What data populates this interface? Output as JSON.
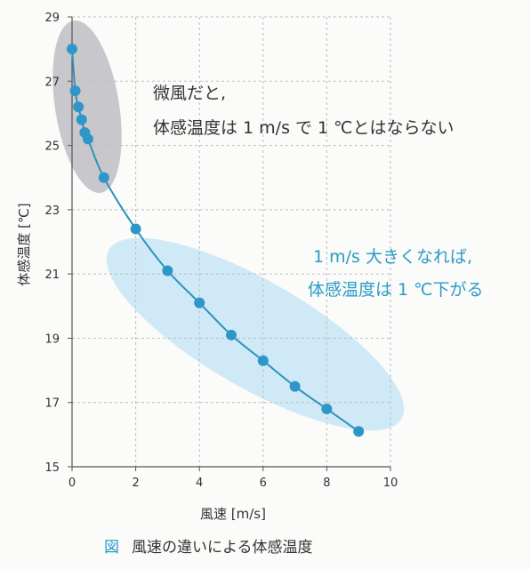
{
  "chart_data": {
    "type": "line",
    "title": "",
    "xlabel": "風速 [m/s]",
    "ylabel": "体感温度 [℃]",
    "xlim": [
      0,
      10
    ],
    "ylim": [
      15,
      29
    ],
    "x_ticks": [
      "0",
      "2",
      "4",
      "6",
      "8",
      "10"
    ],
    "y_ticks": [
      "15",
      "17",
      "19",
      "21",
      "23",
      "25",
      "27",
      "29"
    ],
    "grid": true,
    "series": [
      {
        "x": [
          0,
          0.1,
          0.2,
          0.3,
          0.4,
          0.5,
          1,
          2,
          3,
          4,
          5,
          6,
          7,
          8,
          9
        ],
        "y": [
          28.0,
          26.7,
          26.2,
          25.8,
          25.4,
          25.2,
          24.0,
          22.4,
          21.1,
          20.1,
          19.1,
          18.3,
          17.5,
          16.8,
          16.1
        ]
      }
    ],
    "annotations": [
      {
        "lines": [
          "微風だと,",
          "体感温度は 1 m/s で 1 ℃とはならない"
        ],
        "color": "#333333"
      },
      {
        "lines": [
          "1 m/s 大きくなれば,",
          "体感温度は 1 ℃下がる"
        ],
        "color": "#2a9bc6"
      }
    ]
  },
  "caption": {
    "mark": "図",
    "text": "風速の違いによる体感温度"
  },
  "colors": {
    "line": "#2c93bd",
    "marker": "#2e96c8",
    "gray_ellipse": "#c8c8cc",
    "blue_ellipse": "#cfe9f6",
    "grid": "#bdbdbd"
  }
}
